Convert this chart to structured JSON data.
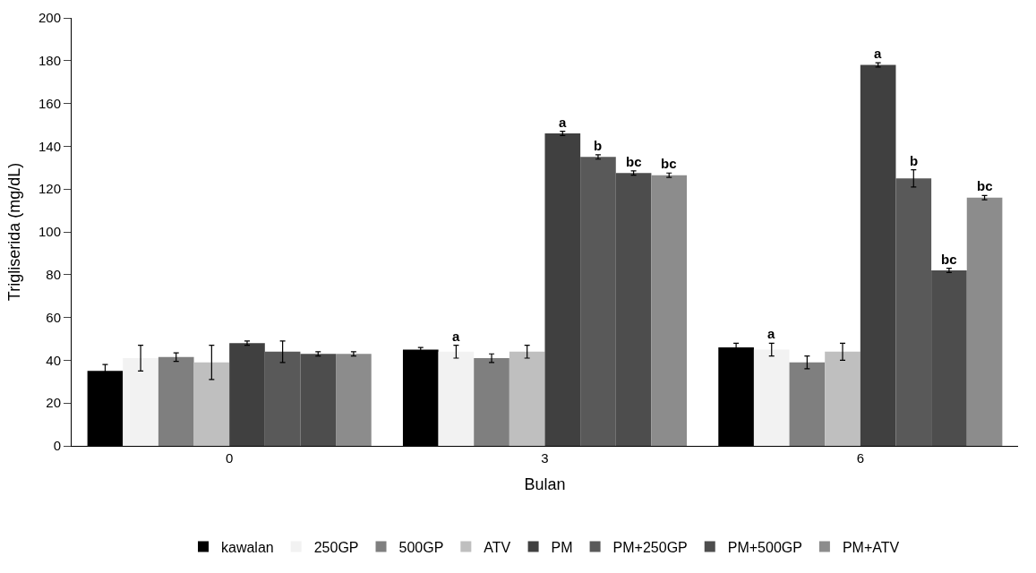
{
  "chart_data": {
    "type": "bar",
    "xlabel": "Bulan",
    "ylabel": "Trigliserida (mg/dL)",
    "categories": [
      "0",
      "3",
      "6"
    ],
    "series": [
      {
        "name": "kawalan",
        "color": "#000000",
        "values": [
          35,
          45,
          46
        ],
        "errors": [
          3,
          1,
          2
        ]
      },
      {
        "name": "250GP",
        "color": "#f2f2f2",
        "values": [
          41,
          44,
          45
        ],
        "errors": [
          6,
          3,
          3
        ],
        "value_labels": [
          null,
          "a",
          "a"
        ]
      },
      {
        "name": "500GP",
        "color": "#7f7f7f",
        "values": [
          41.5,
          41,
          39
        ],
        "errors": [
          2,
          2,
          3
        ]
      },
      {
        "name": "ATV",
        "color": "#bfbfbf",
        "values": [
          39,
          44,
          44
        ],
        "errors": [
          8,
          3,
          4
        ]
      },
      {
        "name": "PM",
        "color": "#404040",
        "values": [
          48,
          146,
          178
        ],
        "errors": [
          1,
          1,
          1
        ],
        "value_labels": [
          null,
          "a",
          "a"
        ]
      },
      {
        "name": "PM+250GP",
        "color": "#595959",
        "values": [
          44,
          135,
          125
        ],
        "errors": [
          5,
          1,
          4
        ],
        "value_labels": [
          null,
          "b",
          "b"
        ]
      },
      {
        "name": "PM+500GP",
        "color": "#4d4d4d",
        "values": [
          43,
          127.5,
          82
        ],
        "errors": [
          1,
          1,
          1
        ],
        "value_labels": [
          null,
          "bc",
          "bc"
        ]
      },
      {
        "name": "PM+ATV",
        "color": "#8c8c8c",
        "values": [
          43,
          126.5,
          116
        ],
        "errors": [
          1,
          1,
          1
        ],
        "value_labels": [
          null,
          "bc",
          "bc"
        ]
      }
    ],
    "ylim": [
      0,
      200
    ],
    "yticks": [
      0,
      20,
      40,
      60,
      80,
      100,
      120,
      140,
      160,
      180,
      200
    ],
    "grid": false,
    "legend": "bottom"
  }
}
